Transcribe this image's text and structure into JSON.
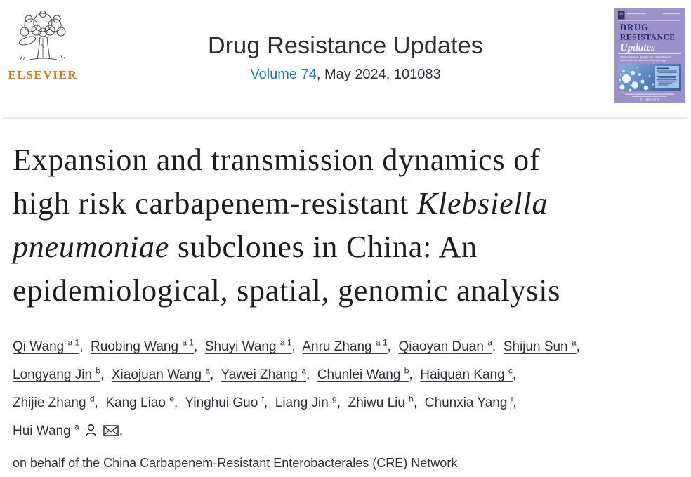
{
  "header": {
    "publisher_wordmark": "ELSEVIER",
    "journal_title": "Drug Resistance Updates",
    "volume_link_label": "Volume 74",
    "issue_suffix": ", May 2024, 101083",
    "link_blue": "#1a7dbb",
    "elsevier_orange": "#e8710a"
  },
  "cover": {
    "title_line1": "DRUG",
    "title_line2": "RESISTANCE",
    "title_line3": "Updates",
    "subtitle_line1": "Original research, Reviews and commentaries in",
    "subtitle_line2": "antimicrobial and anticancer chemotherapy",
    "publisher_small": "ELSEVIER",
    "background": "#9c92c9",
    "title_color": "#1e2a66"
  },
  "article": {
    "title_lines": [
      [
        {
          "t": "Expansion and transmission dynamics of"
        }
      ],
      [
        {
          "t": "high risk carbapenem-resistant "
        },
        {
          "t": "Klebsiella",
          "i": true
        }
      ],
      [
        {
          "t": "pneumoniae",
          "i": true
        },
        {
          "t": " subclones in China: An"
        }
      ],
      [
        {
          "t": "epidemiological, spatial, genomic analysis"
        }
      ]
    ],
    "author_lines": [
      [
        {
          "name": "Qi Wang",
          "sup": "a 1"
        },
        {
          "name": "Ruobing Wang",
          "sup": "a 1"
        },
        {
          "name": "Shuyi Wang",
          "sup": "a 1"
        },
        {
          "name": "Anru Zhang",
          "sup": "a 1"
        },
        {
          "name": "Qiaoyan Duan",
          "sup": "a"
        },
        {
          "name": "Shijun Sun",
          "sup": "a"
        }
      ],
      [
        {
          "name": "Longyang Jin",
          "sup": "b"
        },
        {
          "name": "Xiaojuan Wang",
          "sup": "a"
        },
        {
          "name": "Yawei Zhang",
          "sup": "a"
        },
        {
          "name": "Chunlei Wang",
          "sup": "b"
        },
        {
          "name": "Haiquan Kang",
          "sup": "c"
        }
      ],
      [
        {
          "name": "Zhijie Zhang",
          "sup": "d"
        },
        {
          "name": "Kang Liao",
          "sup": "e"
        },
        {
          "name": "Yinghui Guo",
          "sup": "f"
        },
        {
          "name": "Liang Jin",
          "sup": "g"
        },
        {
          "name": "Zhiwu Liu",
          "sup": "h"
        },
        {
          "name": "Chunxia Yang",
          "sup": "i"
        }
      ],
      [
        {
          "name": "Hui Wang",
          "sup": "a",
          "icons": [
            "person-icon",
            "envelope-icon"
          ]
        }
      ]
    ],
    "on_behalf": "on behalf of the China Carbapenem-Resistant Enterobacterales (CRE) Network"
  }
}
